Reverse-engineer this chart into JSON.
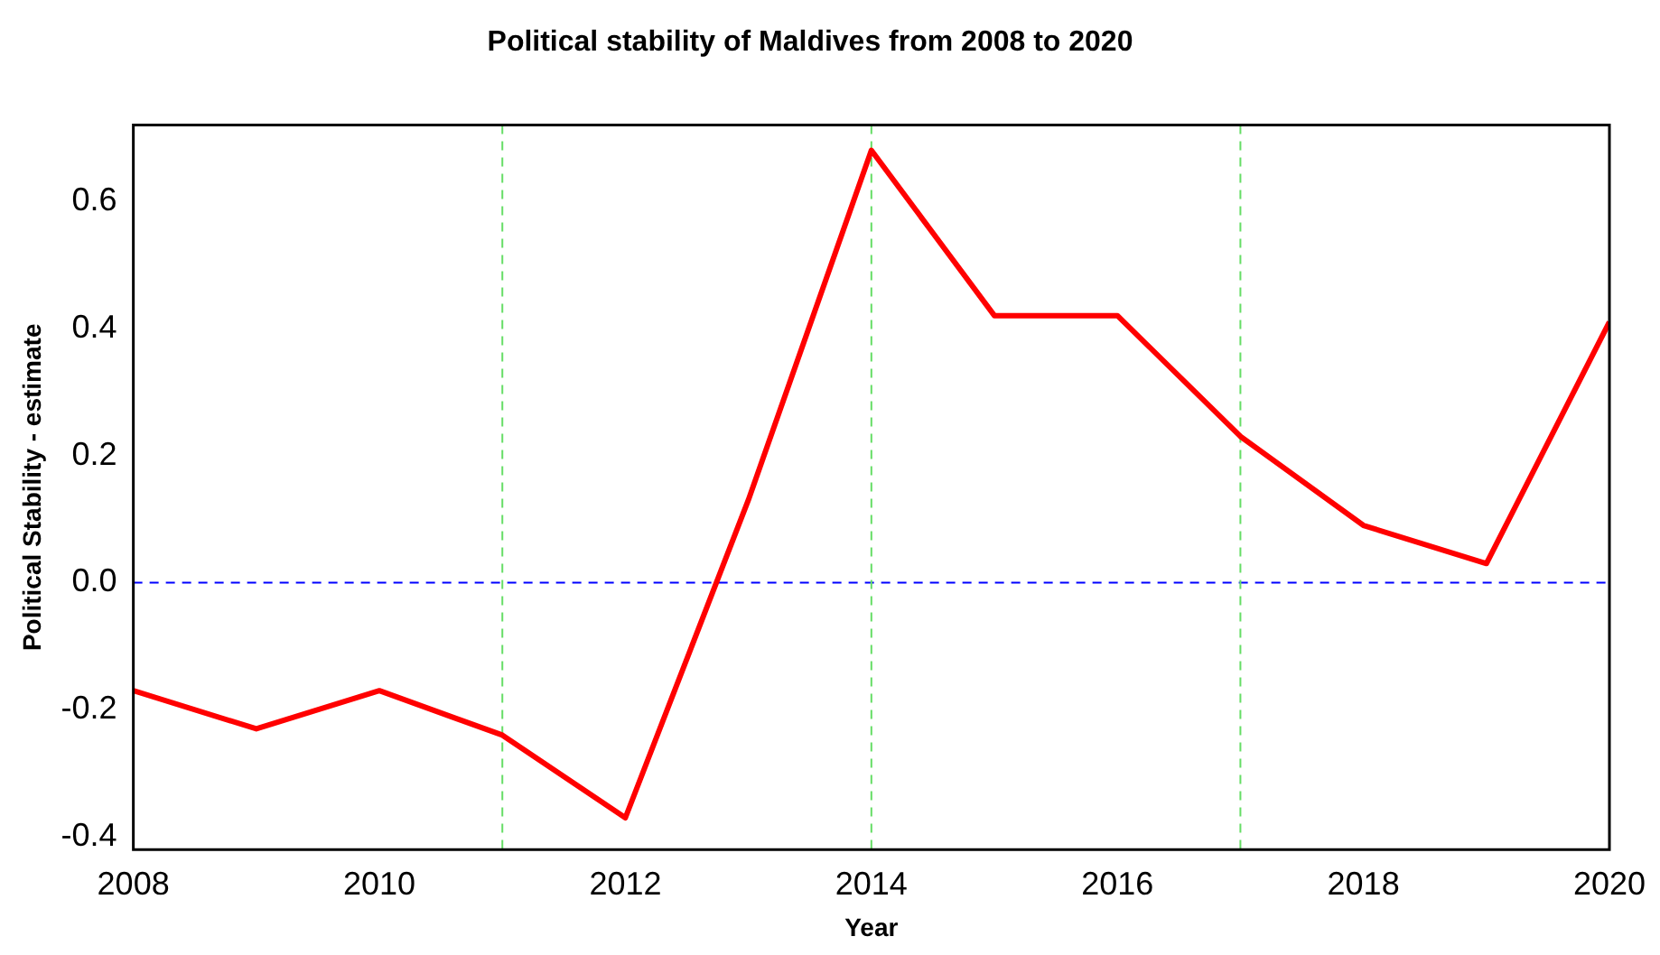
{
  "chart_data": {
    "type": "line",
    "title": "Political stability of Maldives from 2008 to 2020",
    "xlabel": "Year",
    "ylabel": "Political Stability - estimate",
    "x": [
      2008,
      2009,
      2010,
      2011,
      2012,
      2013,
      2014,
      2015,
      2016,
      2017,
      2018,
      2019,
      2020
    ],
    "series": [
      {
        "color": "#ff0000",
        "values": [
          -0.17,
          -0.23,
          -0.17,
          -0.24,
          -0.37,
          0.13,
          0.68,
          0.42,
          0.42,
          0.23,
          0.09,
          0.03,
          0.41
        ]
      }
    ],
    "xlim": [
      2008,
      2020
    ],
    "xticks": [
      2008,
      2010,
      2012,
      2014,
      2016,
      2018,
      2020
    ],
    "ylim": [
      -0.42,
      0.72
    ],
    "yticks": [
      {
        "value": -0.4,
        "label": "-0.4"
      },
      {
        "value": -0.2,
        "label": "-0.2"
      },
      {
        "value": 0,
        "label": "0.0"
      },
      {
        "value": 0.2,
        "label": "0.2"
      },
      {
        "value": 0.4,
        "label": "0.4"
      },
      {
        "value": 0.6,
        "label": "0.6"
      }
    ],
    "ref_lines": [
      {
        "axis": "y",
        "value": 0,
        "color": "#0000ff",
        "line_style": "dashed"
      },
      {
        "axis": "x",
        "value": 2011,
        "color": "#66dd66",
        "line_style": "dashed"
      },
      {
        "axis": "x",
        "value": 2014,
        "color": "#66dd66",
        "line_style": "dashed"
      },
      {
        "axis": "x",
        "value": 2017,
        "color": "#66dd66",
        "line_style": "dashed"
      }
    ],
    "grid": false,
    "legend": false,
    "marker": "none",
    "line_style": "solid"
  }
}
